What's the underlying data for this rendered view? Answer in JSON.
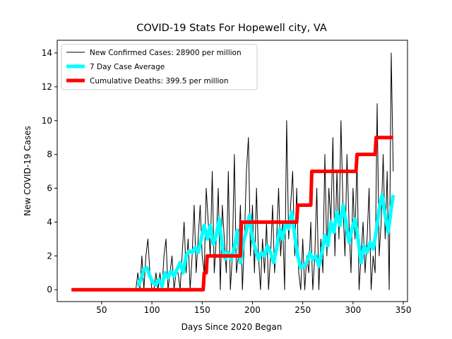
{
  "chart_data": {
    "type": "line",
    "title": "COVID-19 Stats For Hopewell city, VA",
    "xlabel": "Days Since 2020 Began",
    "ylabel": "New COVID-19 Cases",
    "xlim": [
      5.8,
      354.2
    ],
    "ylim": [
      -0.7,
      14.75
    ],
    "xticks": [
      50,
      100,
      150,
      200,
      250,
      300,
      350
    ],
    "yticks": [
      0,
      2,
      4,
      6,
      8,
      10,
      12,
      14
    ],
    "legend": "upper left",
    "series": [
      {
        "name": "New Confirmed Cases: 28900 per million",
        "color": "#000000",
        "width": 1,
        "x": [
          20,
          84,
          86,
          88,
          90,
          92,
          94,
          96,
          98,
          100,
          102,
          104,
          106,
          108,
          110,
          112,
          114,
          116,
          118,
          120,
          122,
          124,
          126,
          128,
          130,
          132,
          134,
          136,
          138,
          140,
          142,
          144,
          146,
          148,
          150,
          152,
          154,
          156,
          158,
          160,
          162,
          164,
          166,
          168,
          170,
          172,
          174,
          176,
          178,
          180,
          182,
          184,
          186,
          188,
          190,
          192,
          194,
          196,
          198,
          200,
          202,
          204,
          206,
          208,
          210,
          212,
          214,
          216,
          218,
          220,
          222,
          224,
          226,
          228,
          230,
          232,
          234,
          236,
          238,
          240,
          242,
          244,
          246,
          248,
          250,
          252,
          254,
          256,
          258,
          260,
          262,
          264,
          266,
          268,
          270,
          272,
          274,
          276,
          278,
          280,
          282,
          284,
          286,
          288,
          290,
          292,
          294,
          296,
          298,
          300,
          302,
          304,
          306,
          308,
          310,
          312,
          314,
          316,
          318,
          320,
          322,
          324,
          326,
          328,
          330,
          332,
          334,
          336,
          338,
          340
        ],
        "values": [
          0,
          0,
          1,
          0,
          2,
          0,
          2,
          3,
          1,
          0,
          0,
          1,
          0,
          1,
          0,
          2,
          3,
          0,
          1,
          2,
          0,
          1,
          1,
          0,
          2,
          4,
          1,
          3,
          0,
          2,
          5,
          1,
          3,
          5,
          2,
          1,
          6,
          4,
          2,
          7,
          1,
          3,
          6,
          0,
          5,
          3,
          1,
          7,
          0,
          2,
          8,
          1,
          2,
          5,
          0,
          3,
          7,
          9,
          2,
          5,
          1,
          6,
          2,
          0,
          3,
          1,
          4,
          0,
          2,
          5,
          1,
          3,
          6,
          2,
          4,
          0,
          10,
          3,
          5,
          7,
          2,
          6,
          1,
          0,
          3,
          0,
          2,
          1,
          4,
          0,
          2,
          6,
          0,
          3,
          1,
          8,
          2,
          6,
          4,
          9,
          2,
          7,
          3,
          10,
          5,
          2,
          8,
          4,
          1,
          6,
          3,
          8,
          0,
          2,
          4,
          1,
          3,
          6,
          0,
          2,
          1,
          11,
          2,
          4,
          8,
          3,
          7,
          0,
          14,
          7
        ]
      },
      {
        "name": "7 Day Case Average",
        "color": "#00ffff",
        "width": 5,
        "x": [
          86,
          89,
          92,
          95,
          98,
          101,
          104,
          107,
          110,
          113,
          116,
          119,
          122,
          125,
          128,
          131,
          134,
          137,
          140,
          143,
          146,
          149,
          152,
          155,
          158,
          161,
          164,
          167,
          170,
          173,
          176,
          179,
          182,
          185,
          188,
          191,
          194,
          197,
          200,
          203,
          206,
          209,
          212,
          215,
          218,
          221,
          224,
          227,
          230,
          233,
          236,
          239,
          242,
          245,
          248,
          251,
          254,
          257,
          260,
          263,
          266,
          269,
          272,
          275,
          278,
          281,
          284,
          287,
          290,
          293,
          296,
          299,
          302,
          305,
          308,
          311,
          314,
          317,
          320,
          323,
          326,
          329,
          332,
          335,
          338,
          340
        ],
        "values": [
          0.2,
          0.6,
          1.2,
          1.3,
          0.8,
          0.4,
          0.3,
          0.6,
          0.2,
          1.0,
          0.7,
          1.1,
          0.8,
          1.2,
          1.6,
          1.0,
          2.0,
          2.3,
          2.2,
          2.5,
          2.2,
          3.0,
          3.8,
          3.0,
          3.8,
          2.7,
          3.2,
          4.2,
          2.5,
          1.8,
          2.2,
          1.8,
          2.5,
          3.5,
          1.6,
          2.8,
          3.5,
          4.4,
          3.0,
          2.4,
          1.8,
          2.2,
          2.0,
          2.6,
          2.2,
          1.6,
          2.4,
          3.6,
          3.0,
          4.0,
          3.6,
          4.6,
          3.2,
          2.0,
          1.3,
          1.4,
          1.6,
          2.2,
          1.8,
          2.0,
          1.4,
          2.2,
          3.2,
          2.6,
          4.0,
          3.4,
          4.6,
          3.8,
          5.0,
          4.0,
          2.8,
          3.6,
          4.2,
          3.0,
          1.6,
          2.6,
          2.2,
          2.8,
          2.4,
          3.4,
          4.8,
          5.6,
          4.4,
          3.4,
          4.8,
          5.6
        ]
      },
      {
        "name": "Cumulative Deaths: 399.5 per million",
        "color": "#ff0000",
        "width": 5,
        "x": [
          20,
          151,
          152,
          154,
          155,
          188,
          189,
          244,
          245,
          258,
          259,
          303,
          304,
          322,
          323,
          340
        ],
        "values": [
          0,
          0,
          1,
          1,
          2,
          2,
          4,
          4,
          5,
          5,
          7,
          7,
          8,
          8,
          9,
          9
        ]
      }
    ]
  }
}
